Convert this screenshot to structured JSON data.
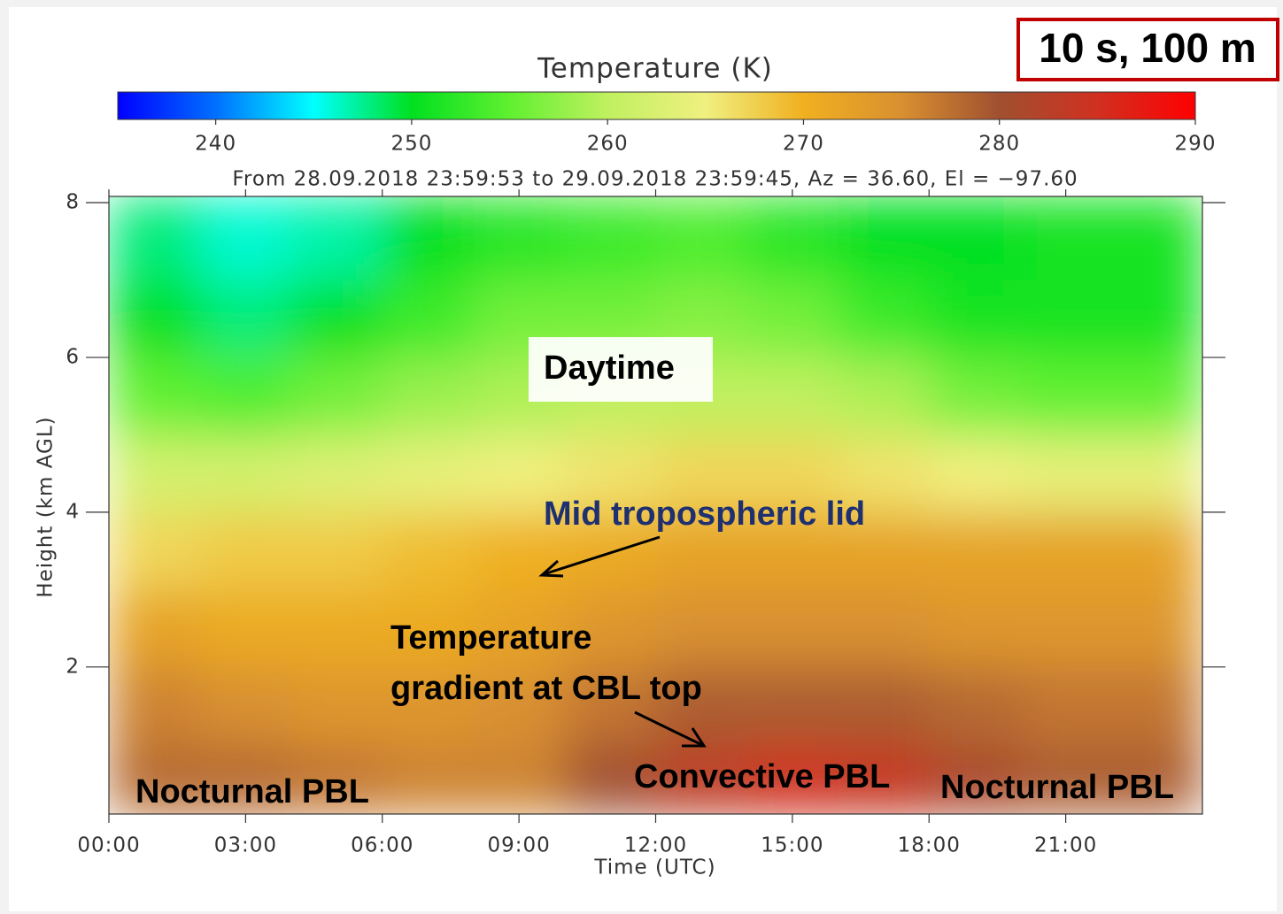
{
  "chart_data": {
    "type": "heatmap",
    "colorbar_label": "Temperature (K)",
    "subtitle": "From 28.09.2018 23:59:53 to 29.09.2018 23:59:45, Az =  36.60, El = −97.60",
    "clim": [
      235,
      290
    ],
    "cticks": [
      240,
      250,
      260,
      270,
      280,
      290
    ],
    "colormap": [
      "#0000ff",
      "#0070ff",
      "#00ffff",
      "#00e020",
      "#60f030",
      "#c0f060",
      "#f0f080",
      "#f0b020",
      "#d89030",
      "#a05030",
      "#d03020",
      "#ff0000"
    ],
    "xlabel": "Time (UTC)",
    "ylabel": "Height (km AGL)",
    "xlim": [
      0,
      24
    ],
    "ylim": [
      0.1,
      8.08
    ],
    "xticks": [
      {
        "value": 0,
        "label": "00:00"
      },
      {
        "value": 3,
        "label": "03:00"
      },
      {
        "value": 6,
        "label": "06:00"
      },
      {
        "value": 9,
        "label": "09:00"
      },
      {
        "value": 12,
        "label": "12:00"
      },
      {
        "value": 15,
        "label": "15:00"
      },
      {
        "value": 18,
        "label": "18:00"
      },
      {
        "value": 21,
        "label": "21:00"
      }
    ],
    "yticks": [
      2,
      4,
      6,
      8
    ],
    "x_edges": [
      0,
      2,
      4,
      6,
      8,
      10,
      12,
      14,
      16,
      18,
      20,
      22,
      24
    ],
    "y_edges": [
      0.1,
      1,
      2,
      3,
      4,
      5,
      6,
      7,
      8.08
    ],
    "z": [
      [
        278,
        278,
        277,
        276,
        276,
        280,
        283,
        285,
        284,
        281,
        279,
        279
      ],
      [
        276,
        275,
        274,
        274,
        275,
        277,
        279,
        279,
        279,
        278,
        277,
        277
      ],
      [
        272,
        271,
        271,
        271,
        272,
        274,
        275,
        275,
        275,
        274,
        274,
        274
      ],
      [
        267,
        268,
        268,
        269,
        270,
        271,
        272,
        272,
        272,
        272,
        272,
        272
      ],
      [
        262,
        262,
        263,
        264,
        265,
        266,
        267,
        267,
        266,
        265,
        264,
        264
      ],
      [
        255,
        254,
        256,
        258,
        259,
        260,
        260,
        260,
        259,
        256,
        255,
        255
      ],
      [
        250,
        248,
        250,
        253,
        256,
        256,
        257,
        256,
        253,
        251,
        251,
        251
      ],
      [
        248,
        246,
        247,
        250,
        252,
        253,
        254,
        252,
        250,
        250,
        251,
        251
      ]
    ],
    "annotations": [
      {
        "text": "10 s, 100 m"
      },
      {
        "text": "Daytime"
      },
      {
        "text": "Mid tropospheric lid"
      },
      {
        "text": [
          "Temperature",
          "gradient at CBL top"
        ]
      },
      {
        "text": "Convective PBL"
      },
      {
        "text": "Nocturnal PBL"
      },
      {
        "text": "Nocturnal PBL"
      }
    ]
  }
}
